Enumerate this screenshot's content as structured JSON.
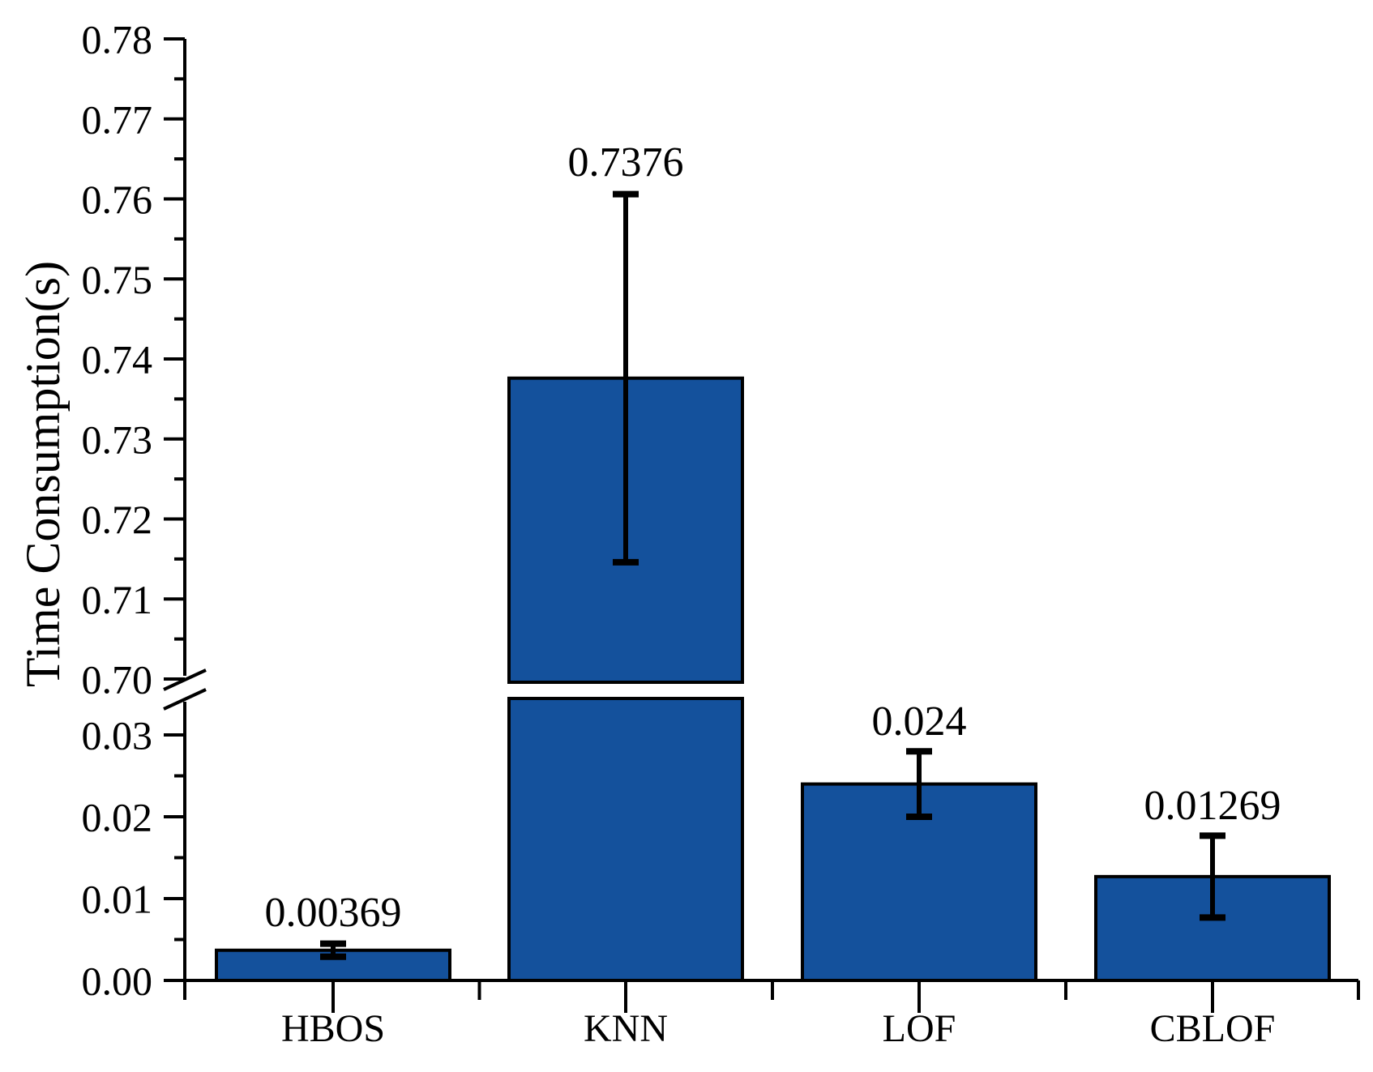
{
  "chart_data": {
    "type": "bar",
    "title": "",
    "xlabel": "",
    "ylabel": "Time Consumption(s)",
    "categories": [
      "HBOS",
      "KNN",
      "LOF",
      "CBLOF"
    ],
    "series": [
      {
        "name": "Time Consumption",
        "values": [
          0.00369,
          0.7376,
          0.024,
          0.01269
        ],
        "value_labels": [
          "0.00369",
          "0.7376",
          "0.024",
          "0.01269"
        ],
        "error_plus": [
          0.0008,
          0.023,
          0.004,
          0.005
        ],
        "error_minus": [
          0.0008,
          0.023,
          0.004,
          0.005
        ]
      }
    ],
    "axis_break": true,
    "upper_axis": {
      "min": 0.7,
      "max": 0.78,
      "major_step": 0.01,
      "minor_step": 0.005,
      "tick_labels": [
        "0.70",
        "0.71",
        "0.72",
        "0.73",
        "0.74",
        "0.75",
        "0.76",
        "0.77",
        "0.78"
      ]
    },
    "lower_axis": {
      "min": 0.0,
      "max": 0.03,
      "major_step": 0.01,
      "minor_step": 0.005,
      "tick_labels": [
        "0.00",
        "0.01",
        "0.02",
        "0.03"
      ]
    },
    "grid": false,
    "legend": null,
    "colors": {
      "bar_fill": "#14519c",
      "bar_edge": "#000000",
      "error_bar": "#000000",
      "axis": "#000000",
      "text": "#000000",
      "background": "#ffffff"
    }
  }
}
